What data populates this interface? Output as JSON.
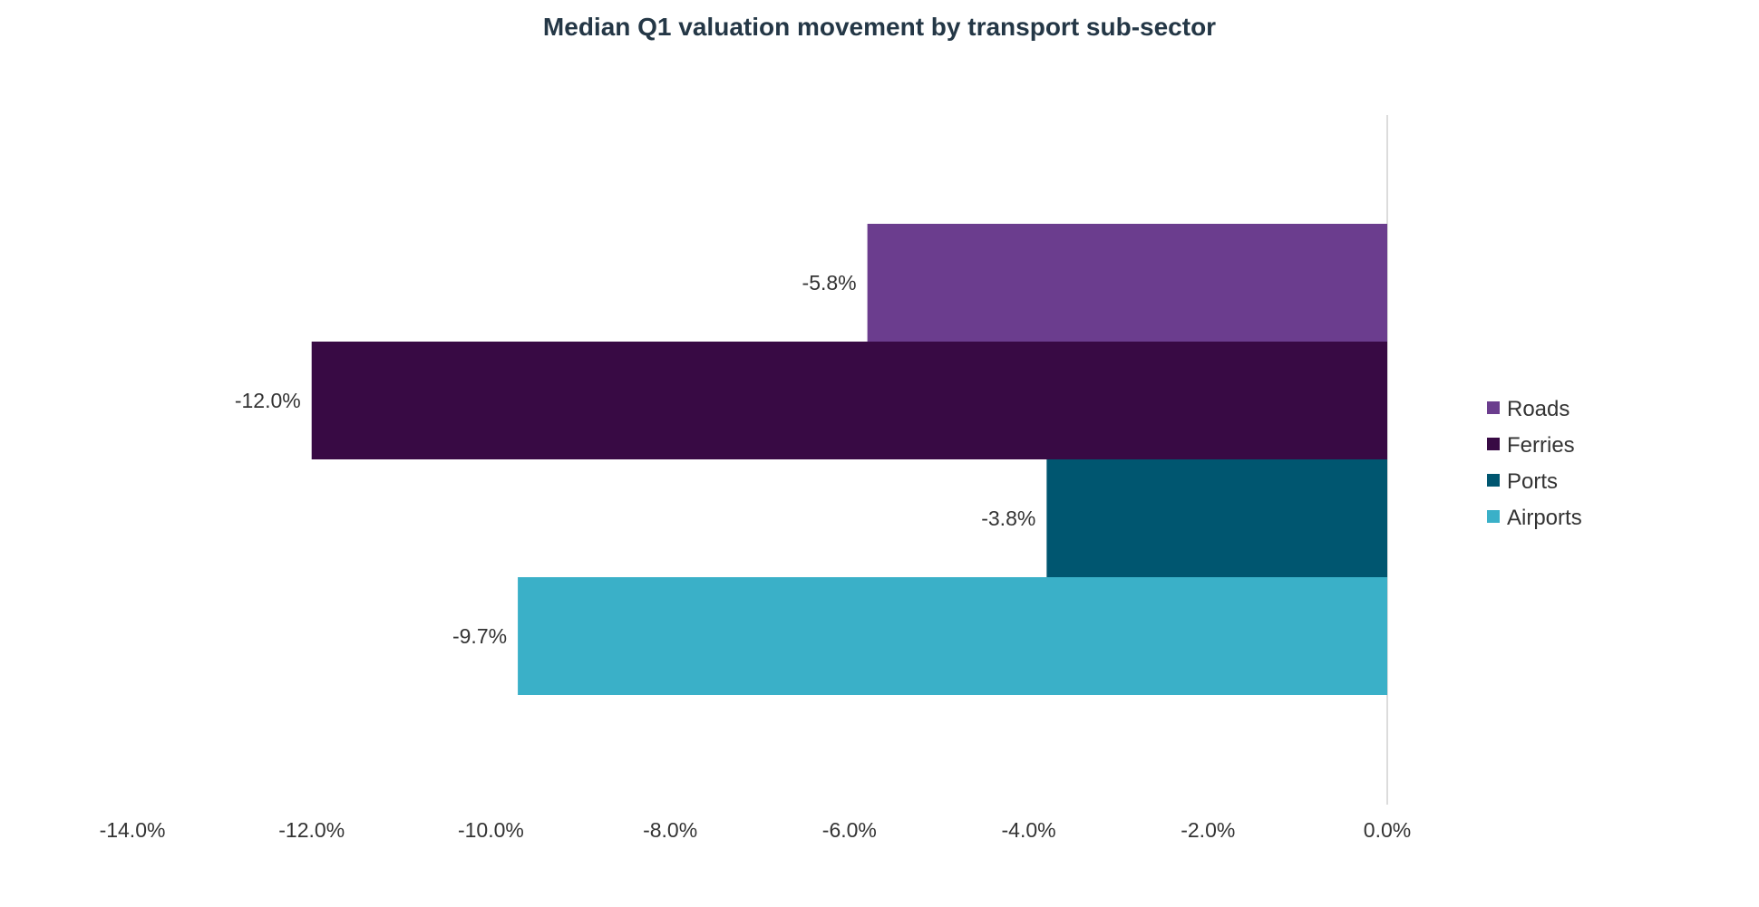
{
  "chart_data": {
    "type": "bar",
    "orientation": "horizontal",
    "title": "Median Q1 valuation movement by transport sub-sector",
    "xlabel": "",
    "ylabel": "",
    "xlim": [
      -14.0,
      0.0
    ],
    "x_ticks": [
      -14.0,
      -12.0,
      -10.0,
      -8.0,
      -6.0,
      -4.0,
      -2.0,
      0.0
    ],
    "x_tick_labels": [
      "-14.0%",
      "-12.0%",
      "-10.0%",
      "-8.0%",
      "-6.0%",
      "-4.0%",
      "-2.0%",
      "0.0%"
    ],
    "grid": false,
    "legend_position": "right",
    "series": [
      {
        "name": "Roads",
        "value": -5.8,
        "label": "-5.8%",
        "color": "#6B3D8E"
      },
      {
        "name": "Ferries",
        "value": -12.0,
        "label": "-12.0%",
        "color": "#380A44"
      },
      {
        "name": "Ports",
        "value": -3.8,
        "label": "-3.8%",
        "color": "#005670"
      },
      {
        "name": "Airports",
        "value": -9.7,
        "label": "-9.7%",
        "color": "#3AB0C8"
      }
    ]
  }
}
